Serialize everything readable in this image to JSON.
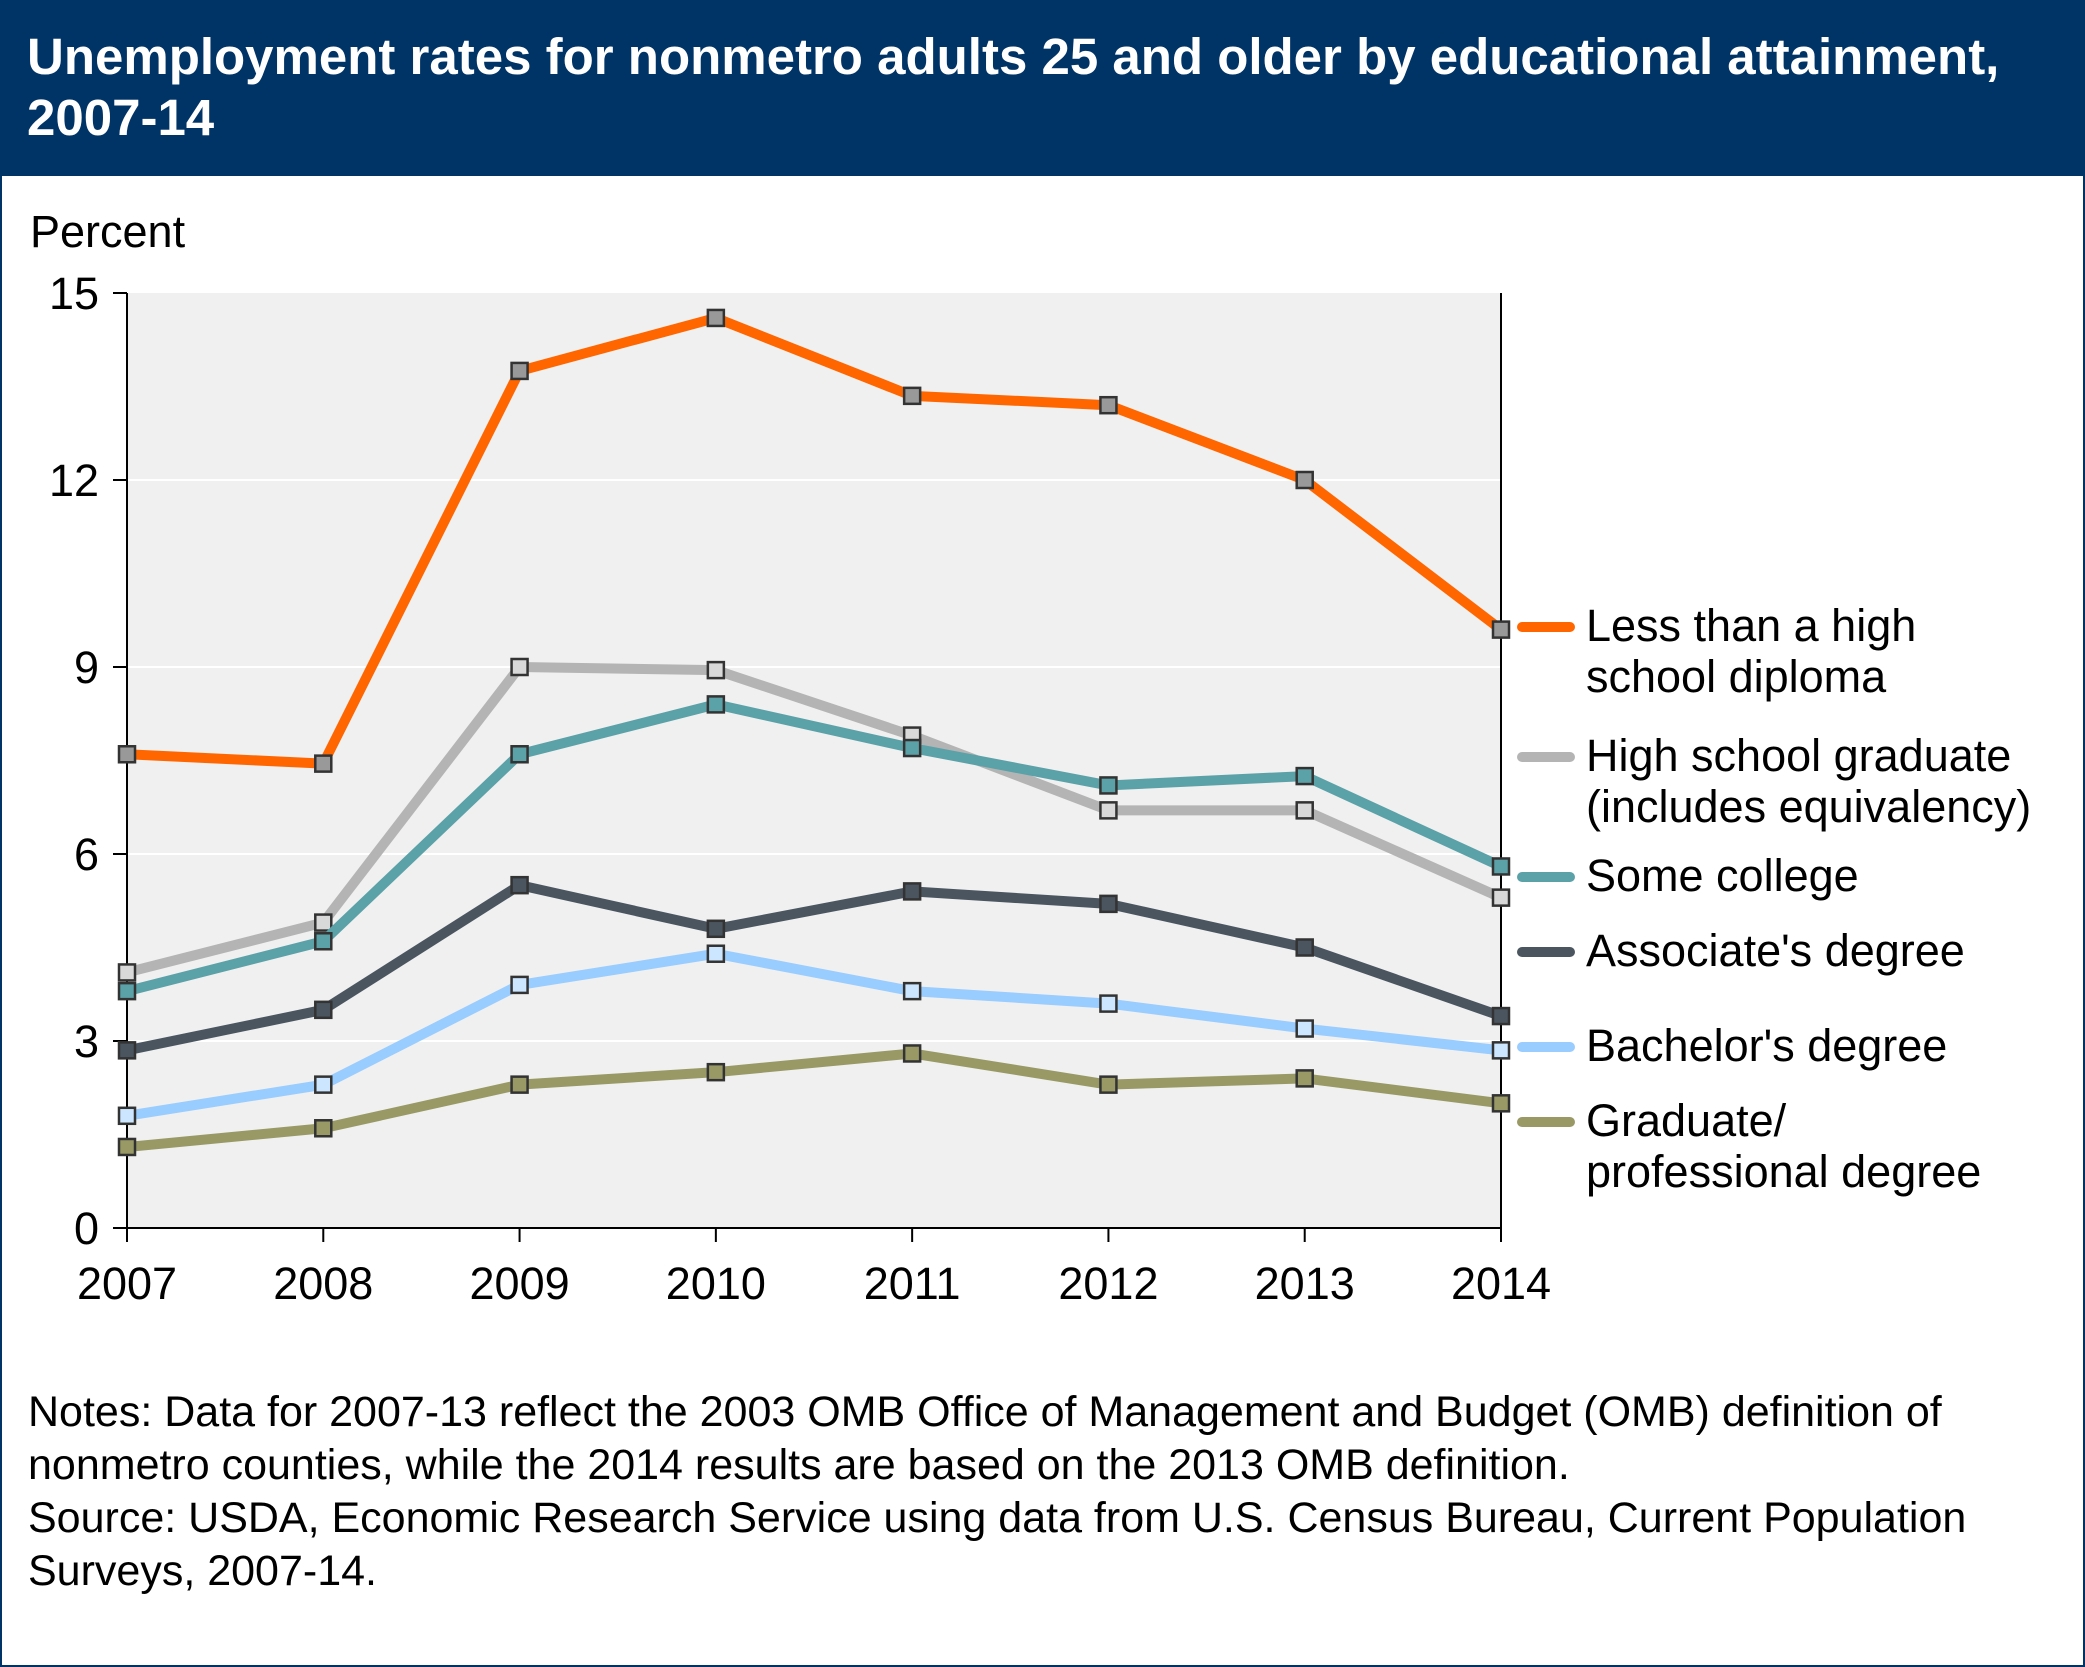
{
  "title": "Unemployment rates for nonmetro adults 25 and older by educational attainment, 2007-14",
  "notes": "Notes: Data for 2007-13 reflect the 2003 OMB Office of Management and Budget (OMB) definition of nonmetro counties, while the 2014 results are based on the 2013 OMB definition.",
  "source": "Source: USDA, Economic Research Service using data from U.S. Census Bureau, Current Population Surveys, 2007-14.",
  "colors": {
    "header_bg": "#003366",
    "plot_bg": "#f0f0f0",
    "gridline": "#ffffff"
  },
  "chart_data": {
    "type": "line",
    "title": "Unemployment rates for nonmetro adults 25 and older by educational attainment, 2007-14",
    "xlabel": "",
    "ylabel": "Percent",
    "x": [
      "2007",
      "2008",
      "2009",
      "2010",
      "2011",
      "2012",
      "2013",
      "2014"
    ],
    "ylim": [
      0,
      15
    ],
    "yticks": [
      0,
      3,
      6,
      9,
      12,
      15
    ],
    "grid": true,
    "legend_placement": "right",
    "series": [
      {
        "name": "Less than a high school diploma",
        "label_lines": [
          "Less than a high",
          "school diploma"
        ],
        "color": "#ff6600",
        "marker": "#999999",
        "values": [
          7.6,
          7.45,
          13.75,
          14.6,
          13.35,
          13.2,
          12.0,
          9.6
        ]
      },
      {
        "name": "High school graduate (includes equivalency)",
        "label_lines": [
          "High school graduate",
          "(includes equivalency)"
        ],
        "color": "#b4b4b4",
        "marker": "#d9d9d9",
        "values": [
          4.1,
          4.9,
          9.0,
          8.95,
          7.9,
          6.7,
          6.7,
          5.3
        ]
      },
      {
        "name": "Some college",
        "label_lines": [
          "Some college"
        ],
        "color": "#5ba1a8",
        "marker": "#5ba1a8",
        "values": [
          3.8,
          4.6,
          7.6,
          8.4,
          7.7,
          7.1,
          7.25,
          5.8
        ]
      },
      {
        "name": "Associate's degree",
        "label_lines": [
          "Associate's degree"
        ],
        "color": "#4a5560",
        "marker": "#4a5560",
        "values": [
          2.85,
          3.5,
          5.5,
          4.8,
          5.4,
          5.2,
          4.5,
          3.4
        ]
      },
      {
        "name": "Bachelor's degree",
        "label_lines": [
          "Bachelor's degree"
        ],
        "color": "#99ccff",
        "marker": "#cce6ff",
        "values": [
          1.8,
          2.3,
          3.9,
          4.4,
          3.8,
          3.6,
          3.2,
          2.85
        ]
      },
      {
        "name": "Graduate/ professional degree",
        "label_lines": [
          "Graduate/",
          "professional degree"
        ],
        "color": "#999966",
        "marker": "#999966",
        "values": [
          1.3,
          1.6,
          2.3,
          2.5,
          2.8,
          2.3,
          2.4,
          2.0
        ]
      }
    ]
  }
}
